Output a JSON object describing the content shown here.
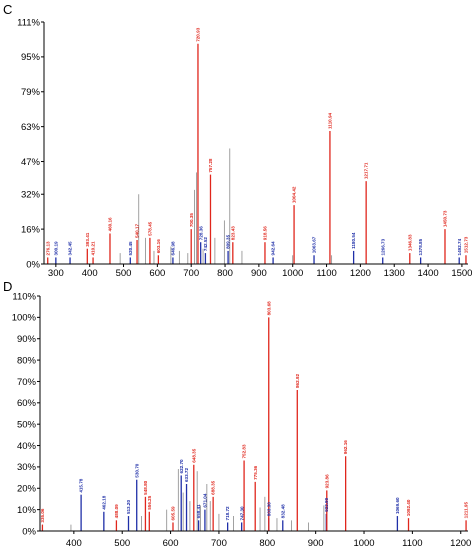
{
  "figure": {
    "colors": {
      "b_ion": "#1f2fa8",
      "y_ion": "#e0261c",
      "unassigned": "#8a8a8a",
      "axis": "#000000"
    }
  },
  "chart_data": [
    {
      "panel": "C",
      "type": "bar",
      "title": "",
      "xlabel": "",
      "ylabel": "",
      "xlim": [
        265,
        1518
      ],
      "ylim": [
        0,
        111
      ],
      "x_ticks": [
        300,
        400,
        500,
        600,
        700,
        800,
        900,
        1000,
        1100,
        1200,
        1300,
        1400,
        1500
      ],
      "y_ticks": [
        "0%",
        "16%",
        "32%",
        "47%",
        "63%",
        "79%",
        "95%",
        "111%"
      ],
      "y_tick_values": [
        0,
        16,
        32,
        47,
        63,
        79,
        95,
        111
      ],
      "grid": false,
      "legend": "none",
      "series": [
        {
          "ion": "y",
          "color": "#e0261c",
          "peaks": [
            {
              "x": 276.0,
              "y": 3,
              "label": "276.13"
            },
            {
              "x": 393.0,
              "y": 7,
              "label": "393.41"
            },
            {
              "x": 410.0,
              "y": 3,
              "label": "410.21"
            },
            {
              "x": 460.0,
              "y": 14,
              "label": "460.16"
            },
            {
              "x": 540.0,
              "y": 11,
              "label": "540.17"
            },
            {
              "x": 578.0,
              "y": 12,
              "label": "578.45"
            },
            {
              "x": 603.0,
              "y": 4,
              "label": "603.16"
            },
            {
              "x": 700.0,
              "y": 16,
              "label": "700.35"
            },
            {
              "x": 720.0,
              "y": 101,
              "label": "720.93"
            },
            {
              "x": 757.0,
              "y": 41,
              "label": "757.28"
            },
            {
              "x": 823.0,
              "y": 10,
              "label": "823.43"
            },
            {
              "x": 918.0,
              "y": 10,
              "label": "918.56"
            },
            {
              "x": 1004.0,
              "y": 27,
              "label": "1004.42"
            },
            {
              "x": 1110.0,
              "y": 61,
              "label": "1110.94"
            },
            {
              "x": 1217.0,
              "y": 38,
              "label": "1217.71"
            },
            {
              "x": 1346.0,
              "y": 5,
              "label": "1346.83"
            },
            {
              "x": 1450.0,
              "y": 16,
              "label": "1450.73"
            },
            {
              "x": 1512.0,
              "y": 4,
              "label": "1512.73"
            }
          ]
        },
        {
          "ion": "b",
          "color": "#1f2fa8",
          "peaks": [
            {
              "x": 300.0,
              "y": 3,
              "label": "300.19"
            },
            {
              "x": 342.0,
              "y": 3,
              "label": "342.45"
            },
            {
              "x": 520.0,
              "y": 3,
              "label": "520.45"
            },
            {
              "x": 646.0,
              "y": 3,
              "label": "646.98"
            },
            {
              "x": 728.0,
              "y": 10,
              "label": "728.36"
            },
            {
              "x": 742.0,
              "y": 5,
              "label": "742.52"
            },
            {
              "x": 809.0,
              "y": 6,
              "label": "809.35"
            },
            {
              "x": 942.0,
              "y": 3,
              "label": "942.64"
            },
            {
              "x": 1063.0,
              "y": 4,
              "label": "1063.67"
            },
            {
              "x": 1180.0,
              "y": 6,
              "label": "1180.54"
            },
            {
              "x": 1266.0,
              "y": 3,
              "label": "1266.73"
            },
            {
              "x": 1378.0,
              "y": 3,
              "label": "1378.85"
            },
            {
              "x": 1492.0,
              "y": 3,
              "label": "1492.74"
            }
          ]
        },
        {
          "ion": "unassigned",
          "color": "#8a8a8a",
          "peaks": [
            {
              "x": 490,
              "y": 5
            },
            {
              "x": 545,
              "y": 32
            },
            {
              "x": 565,
              "y": 12
            },
            {
              "x": 590,
              "y": 6
            },
            {
              "x": 640,
              "y": 8
            },
            {
              "x": 665,
              "y": 6
            },
            {
              "x": 690,
              "y": 5
            },
            {
              "x": 710,
              "y": 34
            },
            {
              "x": 716,
              "y": 42
            },
            {
              "x": 735,
              "y": 7
            },
            {
              "x": 770,
              "y": 12
            },
            {
              "x": 798,
              "y": 20
            },
            {
              "x": 814,
              "y": 53
            },
            {
              "x": 850,
              "y": 6
            },
            {
              "x": 1000,
              "y": 4
            },
            {
              "x": 1115,
              "y": 4
            }
          ]
        }
      ]
    },
    {
      "panel": "D",
      "type": "bar",
      "title": "",
      "xlabel": "",
      "ylabel": "",
      "xlim": [
        330,
        1215
      ],
      "ylim": [
        0,
        110
      ],
      "x_ticks": [
        400,
        500,
        600,
        700,
        800,
        900,
        1000,
        1100,
        1200
      ],
      "y_ticks": [
        "0%",
        "10%",
        "20%",
        "30%",
        "40%",
        "50%",
        "60%",
        "70%",
        "80%",
        "90%",
        "100%",
        "110%"
      ],
      "y_tick_values": [
        0,
        10,
        20,
        30,
        40,
        50,
        60,
        70,
        80,
        90,
        100,
        110
      ],
      "grid": false,
      "legend": "none",
      "series": [
        {
          "ion": "y",
          "color": "#e0261c",
          "peaks": [
            {
              "x": 335.0,
              "y": 3,
              "label": "335.06"
            },
            {
              "x": 488.0,
              "y": 5,
              "label": "488.09"
            },
            {
              "x": 548.0,
              "y": 16,
              "label": "548.80"
            },
            {
              "x": 556.0,
              "y": 9,
              "label": "556.25"
            },
            {
              "x": 605.0,
              "y": 4,
              "label": "605.59"
            },
            {
              "x": 648.0,
              "y": 31,
              "label": "648.35"
            },
            {
              "x": 688.0,
              "y": 16,
              "label": "688.35"
            },
            {
              "x": 752.0,
              "y": 33,
              "label": "752.83"
            },
            {
              "x": 775.0,
              "y": 23,
              "label": "775.36"
            },
            {
              "x": 803.0,
              "y": 100,
              "label": "803.68"
            },
            {
              "x": 862.0,
              "y": 66,
              "label": "862.92"
            },
            {
              "x": 923.0,
              "y": 19,
              "label": "923.86"
            },
            {
              "x": 962.0,
              "y": 35,
              "label": "962.16"
            },
            {
              "x": 1092.0,
              "y": 6,
              "label": "1092.40"
            },
            {
              "x": 1211.0,
              "y": 5,
              "label": "1211.95"
            }
          ]
        },
        {
          "ion": "b",
          "color": "#1f2fa8",
          "peaks": [
            {
              "x": 415.0,
              "y": 17,
              "label": "415.78"
            },
            {
              "x": 462.0,
              "y": 9,
              "label": "462.18"
            },
            {
              "x": 513.0,
              "y": 7,
              "label": "513.20"
            },
            {
              "x": 530.0,
              "y": 24,
              "label": "530.70"
            },
            {
              "x": 622.0,
              "y": 26,
              "label": "622.70"
            },
            {
              "x": 633.0,
              "y": 22,
              "label": "633.72"
            },
            {
              "x": 658.0,
              "y": 5,
              "label": "658.41"
            },
            {
              "x": 671.0,
              "y": 10,
              "label": "671.04"
            },
            {
              "x": 718.0,
              "y": 4,
              "label": "718.72"
            },
            {
              "x": 747.0,
              "y": 4,
              "label": "747.30"
            },
            {
              "x": 803.0,
              "y": 6,
              "label": "803.30"
            },
            {
              "x": 832.0,
              "y": 5,
              "label": "832.48"
            },
            {
              "x": 922.0,
              "y": 8,
              "label": "922.80"
            },
            {
              "x": 1069.0,
              "y": 7,
              "label": "1069.60"
            }
          ]
        },
        {
          "ion": "unassigned",
          "color": "#8a8a8a",
          "peaks": [
            {
              "x": 394,
              "y": 3
            },
            {
              "x": 540,
              "y": 7
            },
            {
              "x": 592,
              "y": 10
            },
            {
              "x": 616,
              "y": 29
            },
            {
              "x": 626,
              "y": 18
            },
            {
              "x": 640,
              "y": 14
            },
            {
              "x": 655,
              "y": 28
            },
            {
              "x": 662,
              "y": 12
            },
            {
              "x": 675,
              "y": 22
            },
            {
              "x": 682,
              "y": 14
            },
            {
              "x": 700,
              "y": 8
            },
            {
              "x": 730,
              "y": 7
            },
            {
              "x": 785,
              "y": 11
            },
            {
              "x": 795,
              "y": 16
            },
            {
              "x": 820,
              "y": 6
            },
            {
              "x": 850,
              "y": 5
            },
            {
              "x": 885,
              "y": 4
            },
            {
              "x": 917,
              "y": 12
            }
          ]
        }
      ]
    }
  ]
}
